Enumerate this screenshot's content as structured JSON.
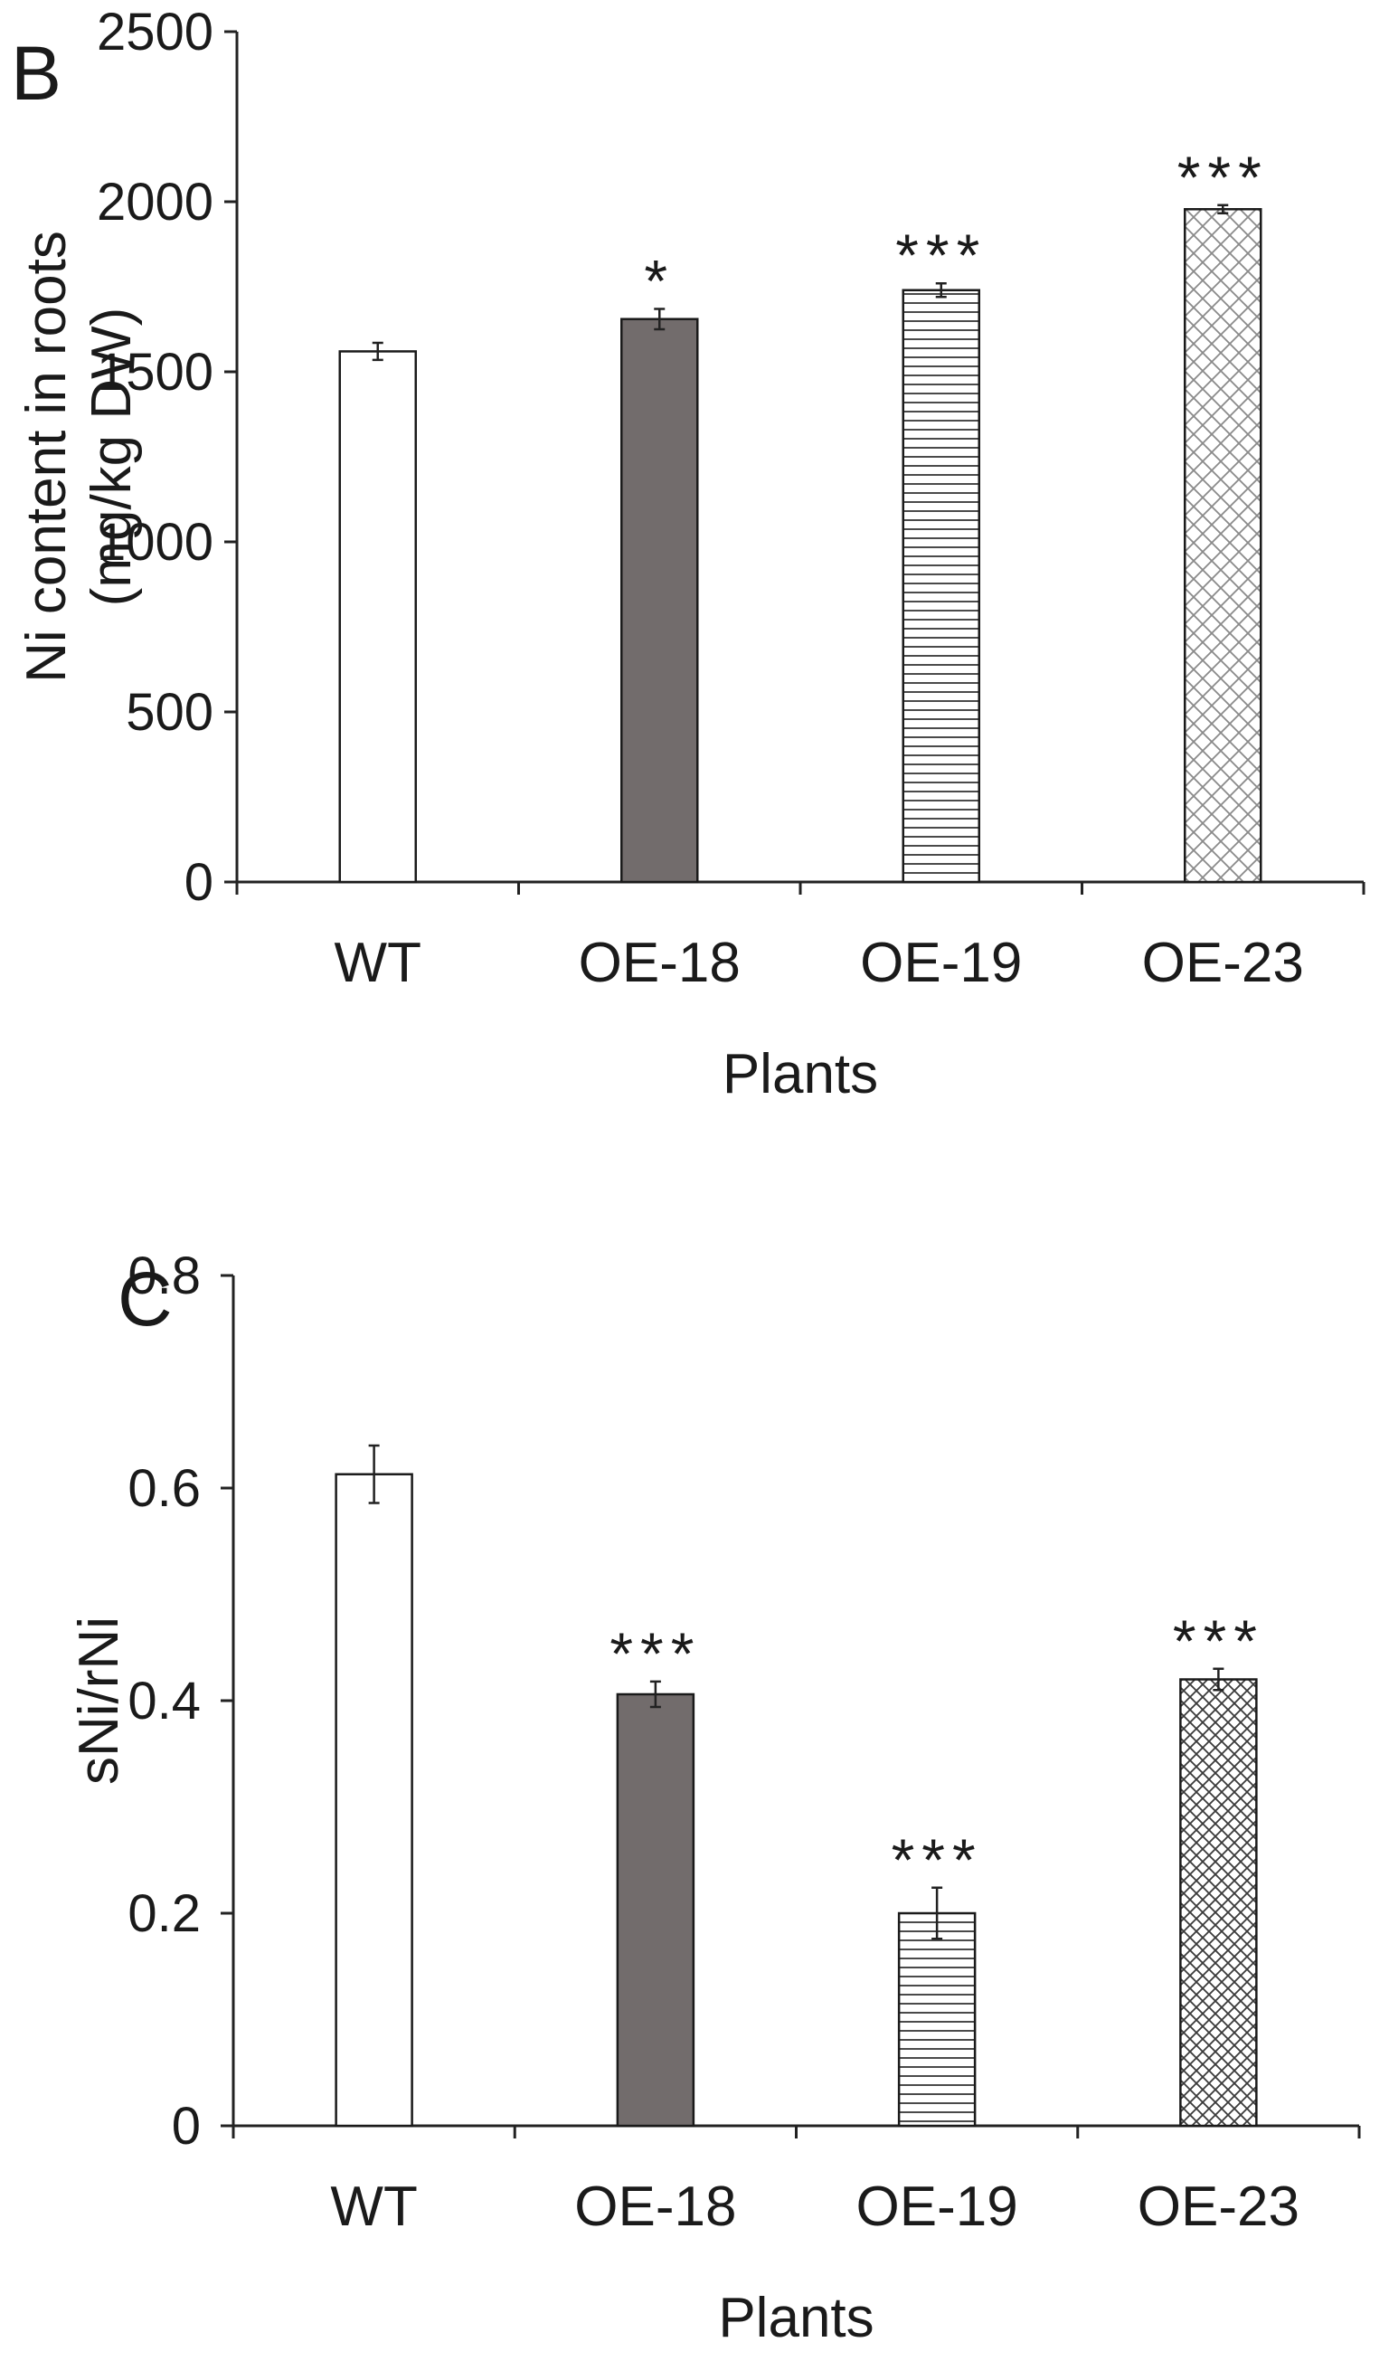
{
  "chart_data": [
    {
      "panel": "B",
      "type": "bar",
      "categories": [
        "WT",
        "OE-18",
        "OE-19",
        "OE-23"
      ],
      "values": [
        1560,
        1655,
        1740,
        1978
      ],
      "errors": [
        25,
        30,
        20,
        12
      ],
      "significance": [
        "",
        "*",
        "***",
        "***"
      ],
      "patterns": [
        "white",
        "dark-gray",
        "horizontal-lines",
        "crosshatch"
      ],
      "xlabel": "Plants",
      "ylabel_lines": [
        "Ni content in roots",
        "(mg/kg DW)"
      ],
      "ylim": [
        0,
        2500
      ],
      "yticks": [
        0,
        500,
        1000,
        1500,
        2000,
        2500
      ],
      "ytick_labels": [
        "0",
        "500",
        "1000",
        "1500",
        "2000",
        "2500"
      ]
    },
    {
      "panel": "C",
      "type": "bar",
      "categories": [
        "WT",
        "OE-18",
        "OE-19",
        "OE-23"
      ],
      "values": [
        0.613,
        0.406,
        0.2,
        0.42
      ],
      "errors": [
        0.027,
        0.012,
        0.024,
        0.01
      ],
      "significance": [
        "",
        "***",
        "***",
        "***"
      ],
      "patterns": [
        "white",
        "dark-gray",
        "horizontal-lines",
        "crosshatch-dense"
      ],
      "xlabel": "Plants",
      "ylabel_lines": [
        "sNi/rNi"
      ],
      "ylim": [
        0,
        0.8
      ],
      "yticks": [
        0,
        0.2,
        0.4,
        0.6,
        0.8
      ],
      "ytick_labels": [
        "0",
        "0.2",
        "0.4",
        "0.6",
        "0.8"
      ]
    }
  ],
  "colors": {
    "bar_outline": "#1a1a1a",
    "dark_bar_fill": "#726c6c",
    "white_bar_fill": "#ffffff",
    "pattern_line": "#4a4a4a",
    "axis": "#222222"
  }
}
